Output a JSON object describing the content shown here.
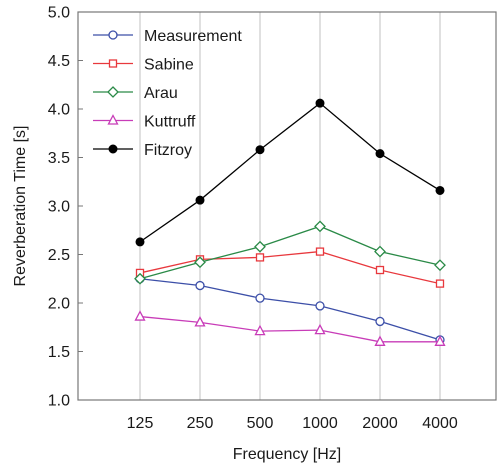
{
  "chart_data": {
    "type": "line",
    "title": "",
    "xlabel": "Frequency [Hz]",
    "ylabel": "Reverberation Time [s]",
    "categories": [
      "125",
      "250",
      "500",
      "1000",
      "2000",
      "4000"
    ],
    "ylim": [
      1.0,
      5.0
    ],
    "yticks": [
      "1.0",
      "1.5",
      "2.0",
      "2.5",
      "3.0",
      "3.5",
      "4.0",
      "4.5",
      "5.0"
    ],
    "grid": "vertical",
    "legend_position": "top-left",
    "series": [
      {
        "name": "Measurement",
        "color": "#3c4fa8",
        "marker": "circle-open",
        "values": [
          2.25,
          2.18,
          2.05,
          1.97,
          1.81,
          1.62
        ]
      },
      {
        "name": "Sabine",
        "color": "#e8383d",
        "marker": "square-open",
        "values": [
          2.31,
          2.45,
          2.47,
          2.53,
          2.34,
          2.2
        ]
      },
      {
        "name": "Arau",
        "color": "#2a8a47",
        "marker": "diamond-open",
        "values": [
          2.25,
          2.42,
          2.58,
          2.79,
          2.53,
          2.39
        ]
      },
      {
        "name": "Kuttruff",
        "color": "#c83cb8",
        "marker": "triangle-open",
        "values": [
          1.86,
          1.8,
          1.71,
          1.72,
          1.6,
          1.6
        ]
      },
      {
        "name": "Fitzroy",
        "color": "#000000",
        "marker": "circle-filled",
        "values": [
          2.63,
          3.06,
          3.58,
          4.06,
          3.54,
          3.16
        ]
      }
    ]
  }
}
